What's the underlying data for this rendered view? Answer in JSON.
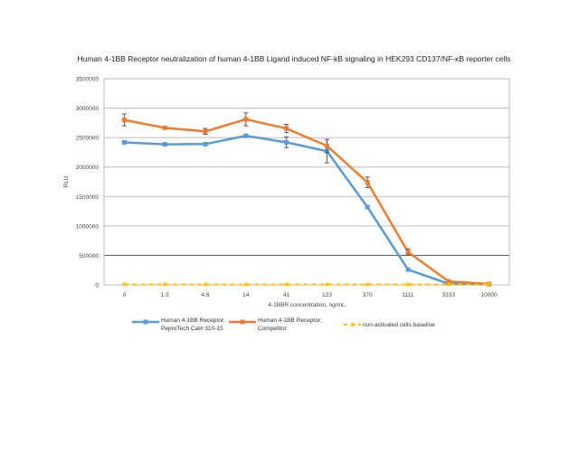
{
  "chart_data": {
    "type": "line",
    "title": "Human 4-1BB Receptor neutralization of human 4-1BB Ligand induced NF-kB signaling in HEK293 CD137/NF-κB reporter cells",
    "xlabel": "4-1BBR concentration, ng/mL",
    "ylabel": "RLU",
    "categories": [
      "0",
      "1.5",
      "4.6",
      "14",
      "41",
      "123",
      "370",
      "1111",
      "3333",
      "10000"
    ],
    "ylim": [
      0,
      3500000
    ],
    "yticks": [
      "0",
      "500000",
      "1000000",
      "1500000",
      "2000000",
      "2500000",
      "3000000",
      "3500000"
    ],
    "grid": true,
    "legend_position": "bottom",
    "series": [
      {
        "name": "Human 4-1BB Receptor; PeproTech Cat# 310-15",
        "color": "#5b9bd5",
        "values": [
          2420000,
          2385000,
          2390000,
          2530000,
          2420000,
          2270000,
          1320000,
          260000,
          20000,
          10000
        ],
        "errors": [
          20000,
          15000,
          20000,
          20000,
          90000,
          200000,
          30000,
          10000,
          5000,
          5000
        ]
      },
      {
        "name": "Human 4-1BB Receptor; Competitor",
        "color": "#ed7d31",
        "values": [
          2800000,
          2665000,
          2605000,
          2810000,
          2655000,
          2360000,
          1740000,
          560000,
          60000,
          15000
        ],
        "errors": [
          100000,
          20000,
          50000,
          110000,
          70000,
          110000,
          90000,
          50000,
          10000,
          5000
        ]
      },
      {
        "name": "non-activated cells baseline",
        "color": "#ffc000",
        "values": [
          5000,
          5000,
          5000,
          5000,
          5000,
          5000,
          5000,
          5000,
          5000,
          5000
        ]
      }
    ]
  },
  "legend": [
    {
      "line1": "Human 4-1BB Receptor;",
      "line2": "PeproTech Cat# 310-15"
    },
    {
      "line1": "Human 4-1BB Receptor;",
      "line2": "Competitor"
    },
    {
      "line1": "non-activated cells baseline",
      "line2": ""
    }
  ]
}
